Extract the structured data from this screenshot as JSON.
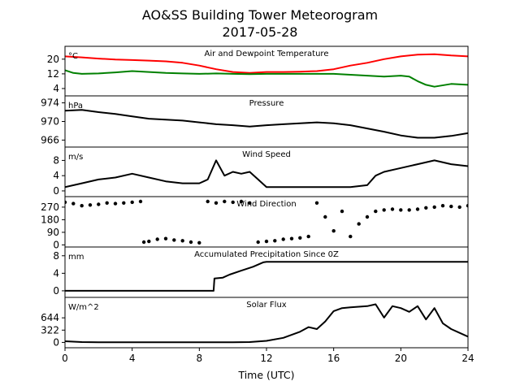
{
  "figure": {
    "title": "AO&SS Building Tower Meteorogram",
    "subtitle": "2017-05-28",
    "xlabel": "Time (UTC)"
  },
  "chart_data": [
    {
      "type": "line",
      "title": "Air and Dewpoint Temperature",
      "unit": "°C",
      "ylim": [
        0,
        27
      ],
      "yticks": [
        4,
        12,
        20
      ],
      "xlim": [
        0,
        24
      ],
      "series": [
        {
          "name": "",
          "color": "#ff0000",
          "x": [
            0,
            1,
            2,
            3,
            4,
            5,
            6,
            7,
            8,
            9,
            10,
            11,
            12,
            13,
            14,
            15,
            16,
            17,
            18,
            19,
            20,
            21,
            22,
            23,
            24
          ],
          "y": [
            21.5,
            21,
            20.3,
            19.8,
            19.5,
            19.2,
            18.8,
            18,
            16.5,
            14.5,
            13,
            12.5,
            13,
            13,
            13.2,
            13.5,
            14.5,
            16.5,
            18,
            20,
            21.5,
            22.5,
            22.7,
            22,
            21.5
          ]
        },
        {
          "name": "",
          "color": "#008000",
          "x": [
            0,
            0.5,
            1,
            2,
            3,
            4,
            5,
            6,
            7,
            8,
            9,
            10,
            11,
            12,
            13,
            14,
            15,
            16,
            17,
            18,
            19,
            20,
            20.5,
            21,
            21.5,
            22,
            23,
            24
          ],
          "y": [
            14,
            12.5,
            12,
            12.2,
            12.8,
            13.5,
            13,
            12.5,
            12.2,
            12,
            12.2,
            12,
            11.8,
            12,
            12,
            12,
            12,
            12,
            11.5,
            11,
            10.5,
            11,
            10.5,
            8,
            6,
            5,
            6.5,
            6
          ]
        }
      ]
    },
    {
      "type": "line",
      "title": "Pressure",
      "unit": "hPa",
      "ylim": [
        964.5,
        975.5
      ],
      "yticks": [
        966,
        970,
        974
      ],
      "xlim": [
        0,
        24
      ],
      "series": [
        {
          "name": "",
          "color": "#000000",
          "x": [
            0,
            1,
            2,
            3,
            4,
            5,
            6,
            7,
            8,
            9,
            10,
            11,
            12,
            13,
            14,
            15,
            16,
            17,
            18,
            19,
            20,
            21,
            22,
            23,
            24
          ],
          "y": [
            972.3,
            972.5,
            972,
            971.6,
            971.1,
            970.6,
            970.4,
            970.2,
            969.8,
            969.4,
            969.2,
            968.9,
            969.2,
            969.4,
            969.6,
            969.8,
            969.6,
            969.2,
            968.5,
            967.8,
            967,
            966.5,
            966.5,
            966.9,
            967.5
          ]
        }
      ]
    },
    {
      "type": "line",
      "title": "Wind Speed",
      "unit": "m/s",
      "ylim": [
        -1.5,
        11.5
      ],
      "yticks": [
        0,
        4,
        8
      ],
      "xlim": [
        0,
        24
      ],
      "series": [
        {
          "name": "",
          "color": "#000000",
          "x": [
            0,
            1,
            2,
            3,
            4,
            5,
            6,
            7,
            8,
            8.5,
            9,
            9.5,
            10,
            10.5,
            11,
            11.5,
            12,
            13,
            14,
            15,
            16,
            17,
            18,
            18.5,
            19,
            20,
            21,
            22,
            23,
            24
          ],
          "y": [
            1,
            2,
            3,
            3.5,
            4.5,
            3.5,
            2.5,
            2,
            2,
            3,
            8,
            4,
            5,
            4.5,
            5,
            3,
            1,
            1,
            1,
            1,
            1,
            1,
            1.5,
            4,
            5,
            6,
            7,
            8,
            7,
            6.5
          ]
        }
      ]
    },
    {
      "type": "scatter",
      "title": "Wind Direction",
      "unit": "",
      "ylim": [
        -15,
        345
      ],
      "yticks": [
        0,
        90,
        180,
        270
      ],
      "xlim": [
        0,
        24
      ],
      "series": [
        {
          "name": "",
          "color": "#000000",
          "x": [
            0,
            0.5,
            1,
            1.5,
            2,
            2.5,
            3,
            3.5,
            4,
            4.5,
            4.7,
            5,
            5.5,
            6,
            6.5,
            7,
            7.5,
            8,
            8.5,
            9,
            9.5,
            10,
            10.5,
            11,
            11.5,
            12,
            12.5,
            13,
            13.5,
            14,
            14.5,
            15,
            15.5,
            16,
            16.5,
            17,
            17.5,
            18,
            18.5,
            19,
            19.5,
            20,
            20.5,
            21,
            21.5,
            22,
            22.5,
            23,
            23.5,
            24
          ],
          "y": [
            305,
            295,
            280,
            285,
            290,
            300,
            295,
            300,
            305,
            310,
            20,
            25,
            40,
            45,
            35,
            30,
            20,
            15,
            310,
            300,
            310,
            305,
            310,
            300,
            20,
            25,
            30,
            40,
            45,
            50,
            60,
            300,
            200,
            100,
            240,
            60,
            150,
            200,
            240,
            250,
            255,
            250,
            250,
            255,
            265,
            270,
            280,
            275,
            270,
            280
          ]
        }
      ]
    },
    {
      "type": "line",
      "title": "Accumulated Precipitation Since 0Z",
      "unit": "mm",
      "ylim": [
        -1.5,
        10
      ],
      "yticks": [
        0,
        4,
        8
      ],
      "xlim": [
        0,
        24
      ],
      "series": [
        {
          "name": "",
          "color": "#000000",
          "x": [
            0,
            8.85,
            8.9,
            9.4,
            9.8,
            10.5,
            11.2,
            11.8,
            12,
            24
          ],
          "y": [
            0,
            0,
            2.8,
            3,
            3.7,
            4.6,
            5.5,
            6.5,
            6.6,
            6.6
          ]
        }
      ]
    },
    {
      "type": "line",
      "title": "Solar Flux",
      "unit": "W/m^2",
      "ylim": [
        -140,
        1180
      ],
      "yticks": [
        0,
        322,
        644
      ],
      "xlim": [
        0,
        24
      ],
      "series": [
        {
          "name": "",
          "color": "#000000",
          "x": [
            0,
            1,
            2,
            3,
            4,
            5,
            6,
            7,
            8,
            9,
            10,
            11,
            12,
            13,
            14,
            14.5,
            15,
            15.5,
            16,
            16.5,
            17,
            18,
            18.5,
            19,
            19.5,
            20,
            20.5,
            21,
            21.5,
            22,
            22.5,
            23,
            23.5,
            24
          ],
          "y": [
            30,
            10,
            5,
            5,
            5,
            5,
            5,
            5,
            5,
            5,
            5,
            10,
            40,
            120,
            280,
            400,
            350,
            550,
            820,
            900,
            920,
            950,
            1000,
            650,
            950,
            900,
            800,
            950,
            600,
            900,
            500,
            350,
            250,
            150
          ]
        }
      ]
    }
  ],
  "xaxis": {
    "ticks": [
      0,
      4,
      8,
      12,
      16,
      20,
      24
    ]
  }
}
